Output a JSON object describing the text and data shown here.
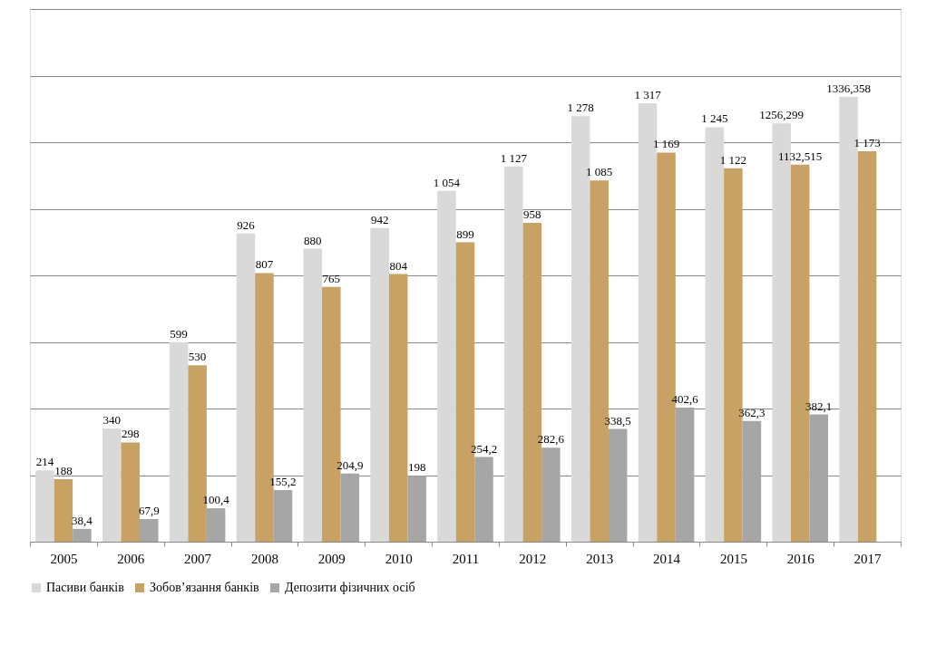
{
  "chart_data": {
    "type": "bar",
    "categories": [
      "2005",
      "2006",
      "2007",
      "2008",
      "2009",
      "2010",
      "2011",
      "2012",
      "2013",
      "2014",
      "2015",
      "2016",
      "2017"
    ],
    "series": [
      {
        "name": "Пасиви банків",
        "color": "#d9d9d9",
        "values": [
          214,
          340,
          599,
          926,
          880,
          942,
          1054,
          1127,
          1278,
          1317,
          1245,
          1256.299,
          1336.358
        ],
        "value_labels": [
          "214",
          "340",
          "599",
          "926",
          "880",
          "942",
          "1 054",
          "1 127",
          "1 278",
          "1 317",
          "1 245",
          "1256,299",
          "1336,358"
        ]
      },
      {
        "name": "Зобов’язання банків",
        "color": "#c8a165",
        "values": [
          188,
          298,
          530,
          807,
          765,
          804,
          899,
          958,
          1085,
          1169,
          1122,
          1132.515,
          1173
        ],
        "value_labels": [
          "188",
          "298",
          "530",
          "807",
          "765",
          "804",
          "899",
          "958",
          "1 085",
          "1 169",
          "1 122",
          "1132,515",
          "1 173"
        ]
      },
      {
        "name": "Депозити фізичних осіб",
        "color": "#a6a6a6",
        "values": [
          38.4,
          67.9,
          100.4,
          155.2,
          204.9,
          198,
          254.2,
          282.6,
          338.5,
          402.6,
          362.3,
          382.1,
          null
        ],
        "value_labels": [
          "38,4",
          "67,9",
          "100,4",
          "155,2",
          "204,9",
          "198",
          "254,2",
          "282,6",
          "338,5",
          "402,6",
          "362,3",
          "382,1",
          null
        ]
      }
    ],
    "ylim": [
      0,
      1600
    ],
    "yticks": [
      {
        "value": 0,
        "label": null
      },
      {
        "value": 200,
        "label": null
      },
      {
        "value": 400,
        "label": null
      },
      {
        "value": 600,
        "label": null
      },
      {
        "value": 800,
        "label": null
      },
      {
        "value": 1000,
        "label": null
      },
      {
        "value": 1200,
        "label": null
      },
      {
        "value": 1400,
        "label": null
      },
      {
        "value": 1600,
        "label": null
      }
    ],
    "grid": "y",
    "legend": "bottom",
    "tick_labels": "x"
  }
}
